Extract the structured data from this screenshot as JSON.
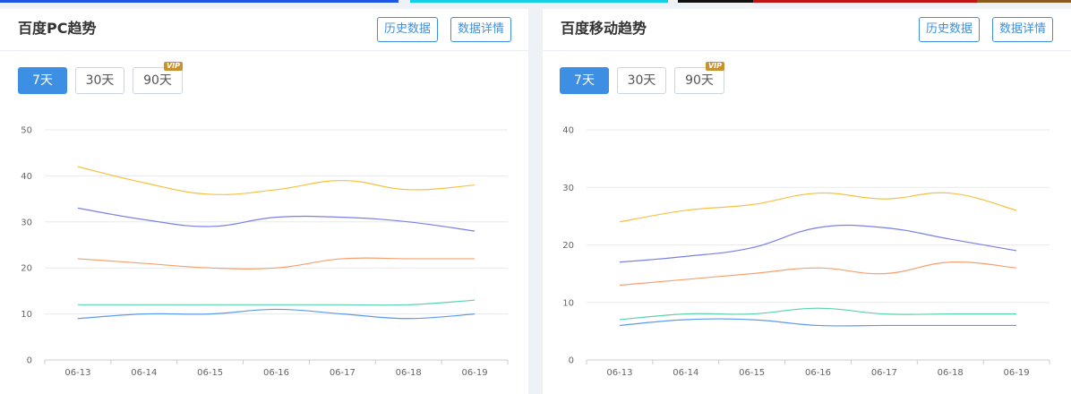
{
  "colors": {
    "accent": "#3d8fe3",
    "series": [
      "#f6c143",
      "#7a7fe8",
      "#f7a06f",
      "#5ad2ad",
      "#5b9bed"
    ],
    "topbar": [
      "#1e56e6",
      "#16d1e6",
      "#111111",
      "#c01515",
      "#8a5a1e"
    ]
  },
  "panels": [
    {
      "title": "百度PC趋势",
      "buttons": {
        "history": "历史数据",
        "detail": "数据详情"
      },
      "ranges": [
        "7天",
        "30天",
        "90天"
      ],
      "vip_badge": "VIP",
      "active_range": 0
    },
    {
      "title": "百度移动趋势",
      "buttons": {
        "history": "历史数据",
        "detail": "数据详情"
      },
      "ranges": [
        "7天",
        "30天",
        "90天"
      ],
      "vip_badge": "VIP",
      "active_range": 0
    }
  ],
  "chart_data": [
    {
      "type": "line",
      "categories": [
        "06-13",
        "06-14",
        "06-15",
        "06-16",
        "06-17",
        "06-18",
        "06-19"
      ],
      "ylim": [
        0,
        50
      ],
      "yticks": [
        0,
        10,
        20,
        30,
        40,
        50
      ],
      "grid": true,
      "series": [
        {
          "values": [
            42,
            38.5,
            36,
            37,
            39,
            37,
            38
          ]
        },
        {
          "values": [
            33,
            30.5,
            29,
            31,
            31,
            30,
            28
          ]
        },
        {
          "values": [
            22,
            21,
            20,
            20,
            22,
            22,
            22
          ]
        },
        {
          "values": [
            12,
            12,
            12,
            12,
            12,
            12,
            13
          ]
        },
        {
          "values": [
            9,
            10,
            10,
            11,
            10,
            9,
            10
          ]
        }
      ]
    },
    {
      "type": "line",
      "categories": [
        "06-13",
        "06-14",
        "06-15",
        "06-16",
        "06-17",
        "06-18",
        "06-19"
      ],
      "ylim": [
        0,
        40
      ],
      "yticks": [
        0,
        10,
        20,
        30,
        40
      ],
      "grid": true,
      "series": [
        {
          "values": [
            24,
            26,
            27,
            29,
            28,
            29,
            26
          ]
        },
        {
          "values": [
            17,
            18,
            19.5,
            23,
            23,
            21,
            19
          ]
        },
        {
          "values": [
            13,
            14,
            15,
            16,
            15,
            17,
            16
          ]
        },
        {
          "values": [
            7,
            8,
            8,
            9,
            8,
            8,
            8
          ]
        },
        {
          "values": [
            6,
            7,
            7,
            6,
            6,
            6,
            6
          ]
        }
      ]
    }
  ]
}
